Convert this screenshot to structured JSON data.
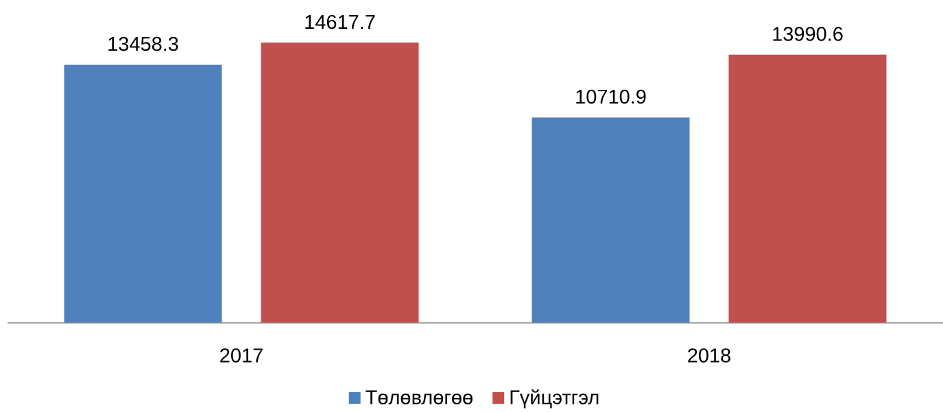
{
  "chart_data": {
    "type": "bar",
    "categories": [
      "2017",
      "2018"
    ],
    "series": [
      {
        "name": "Төлөвлөгөө",
        "color": "#4f81bd",
        "values": [
          13458.3,
          10710.9
        ]
      },
      {
        "name": "Гүйцэтгэл",
        "color": "#c0504d",
        "values": [
          14617.7,
          13990.6
        ]
      }
    ],
    "ylim": [
      0,
      16000
    ],
    "legend": "bottom"
  }
}
